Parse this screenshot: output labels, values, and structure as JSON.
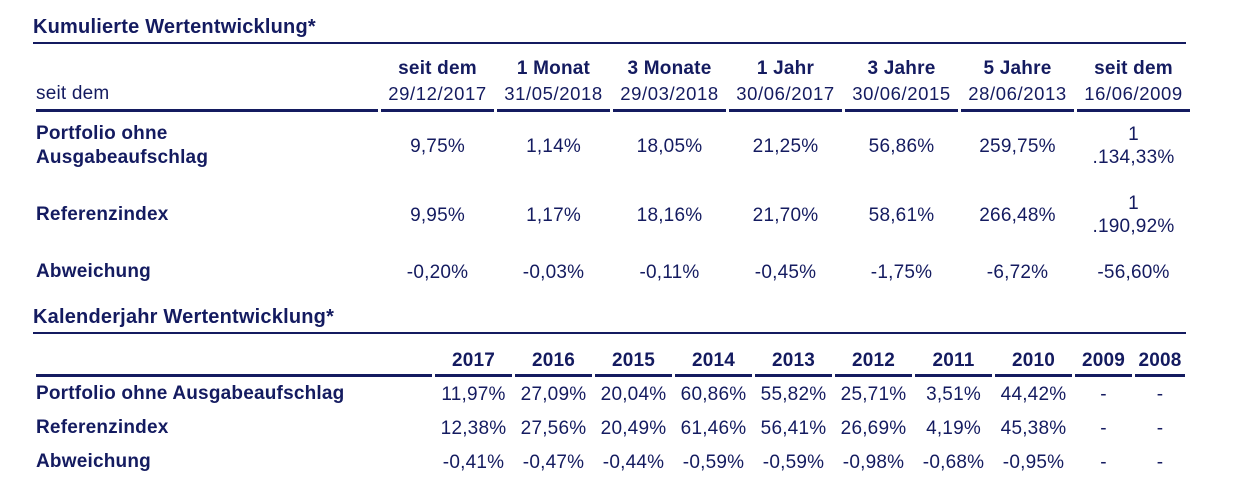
{
  "colors": {
    "text": "#141b60",
    "line": "#141b60",
    "background": "#ffffff"
  },
  "cumulative": {
    "title": "Kumulierte Wertentwicklung*",
    "row_header_label": "seit dem",
    "columns": [
      {
        "period": "seit dem",
        "date": "29/12/2017"
      },
      {
        "period": "1 Monat",
        "date": "31/05/2018"
      },
      {
        "period": "3 Monate",
        "date": "29/03/2018"
      },
      {
        "period": "1 Jahr",
        "date": "30/06/2017"
      },
      {
        "period": "3 Jahre",
        "date": "30/06/2015"
      },
      {
        "period": "5 Jahre",
        "date": "28/06/2013"
      },
      {
        "period": "seit dem",
        "date": "16/06/2009"
      }
    ],
    "rows": [
      {
        "label": "Portfolio ohne Ausgabeaufschlag",
        "values": [
          "9,75%",
          "1,14%",
          "18,05%",
          "21,25%",
          "56,86%",
          "259,75%",
          "1\n.134,33%"
        ]
      },
      {
        "label": "Referenzindex",
        "values": [
          "9,95%",
          "1,17%",
          "18,16%",
          "21,70%",
          "58,61%",
          "266,48%",
          "1\n.190,92%"
        ]
      },
      {
        "label": "Abweichung",
        "values": [
          "-0,20%",
          "-0,03%",
          "-0,11%",
          "-0,45%",
          "-1,75%",
          "-6,72%",
          "-56,60%"
        ]
      }
    ]
  },
  "calendar": {
    "title": "Kalenderjahr Wertentwicklung*",
    "columns": [
      "2017",
      "2016",
      "2015",
      "2014",
      "2013",
      "2012",
      "2011",
      "2010",
      "2009",
      "2008"
    ],
    "rows": [
      {
        "label": "Portfolio ohne Ausgabeaufschlag",
        "values": [
          "11,97%",
          "27,09%",
          "20,04%",
          "60,86%",
          "55,82%",
          "25,71%",
          "3,51%",
          "44,42%",
          "-",
          "-"
        ]
      },
      {
        "label": "Referenzindex",
        "values": [
          "12,38%",
          "27,56%",
          "20,49%",
          "61,46%",
          "56,41%",
          "26,69%",
          "4,19%",
          "45,38%",
          "-",
          "-"
        ]
      },
      {
        "label": "Abweichung",
        "values": [
          "-0,41%",
          "-0,47%",
          "-0,44%",
          "-0,59%",
          "-0,59%",
          "-0,98%",
          "-0,68%",
          "-0,95%",
          "-",
          "-"
        ]
      }
    ]
  }
}
